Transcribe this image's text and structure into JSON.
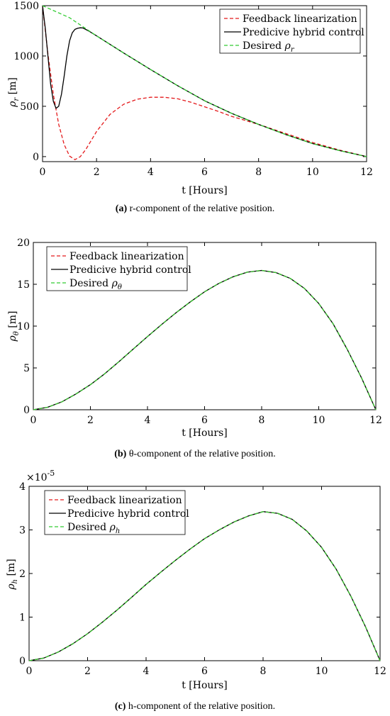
{
  "chart_data": [
    {
      "type": "line",
      "panel": "a",
      "caption_label": "(a)",
      "caption": "r-component of the relative position.",
      "xlabel": "t [Hours]",
      "ylabel_symbol": "ρ",
      "ylabel_sub": "r",
      "ylabel_unit": "[m]",
      "xlim": [
        0,
        12
      ],
      "ylim": [
        -50,
        1500
      ],
      "xticks": [
        0,
        2,
        4,
        6,
        8,
        10,
        12
      ],
      "yticks": [
        0,
        500,
        1000,
        1500
      ],
      "ytick_labels": [
        "0",
        "500",
        "1000",
        "1500"
      ],
      "exponent": "",
      "legend_position": "top-right",
      "grid": false,
      "series": [
        {
          "name": "Feedback linearization",
          "color": "#e41a1c",
          "dash": "dashed",
          "x": [
            0,
            0.2,
            0.4,
            0.6,
            0.8,
            1.0,
            1.2,
            1.4,
            1.6,
            1.8,
            2.0,
            2.5,
            3.0,
            3.5,
            4.0,
            4.5,
            5.0,
            5.5,
            6.0,
            6.5,
            7.0,
            7.5,
            8.0,
            9.0,
            10.0,
            11.0,
            12.0
          ],
          "y": [
            1500,
            1020,
            620,
            320,
            120,
            5,
            -30,
            0,
            70,
            160,
            250,
            420,
            520,
            570,
            590,
            590,
            575,
            540,
            495,
            450,
            400,
            360,
            320,
            230,
            140,
            65,
            0
          ]
        },
        {
          "name": "Predicive hybrid control",
          "color": "#000000",
          "dash": "solid",
          "x": [
            0,
            0.1,
            0.2,
            0.3,
            0.4,
            0.5,
            0.6,
            0.7,
            0.8,
            0.9,
            1.0,
            1.1,
            1.2,
            1.3,
            1.4,
            1.5,
            1.7,
            2.0,
            3.0,
            4.0,
            5.0,
            6.0,
            7.0,
            8.0,
            9.0,
            10.0,
            11.0,
            12.0
          ],
          "y": [
            1500,
            1280,
            1000,
            720,
            550,
            480,
            500,
            620,
            800,
            1000,
            1150,
            1230,
            1265,
            1275,
            1280,
            1278,
            1250,
            1200,
            1030,
            865,
            705,
            555,
            430,
            320,
            220,
            130,
            60,
            0
          ]
        },
        {
          "name": "Desired",
          "legend_symbol": "ρ",
          "legend_sub": "r",
          "color": "#33cc33",
          "dash": "dashed",
          "x": [
            0,
            1,
            2,
            3,
            4,
            5,
            6,
            7,
            8,
            9,
            10,
            11,
            12
          ],
          "y": [
            1500,
            1380,
            1200,
            1030,
            865,
            705,
            555,
            430,
            320,
            220,
            130,
            60,
            0
          ]
        }
      ]
    },
    {
      "type": "line",
      "panel": "b",
      "caption_label": "(b)",
      "caption": "θ-component of the relative position.",
      "xlabel": "t [Hours]",
      "ylabel_symbol": "ρ",
      "ylabel_sub": "θ",
      "ylabel_unit": "[m]",
      "xlim": [
        0,
        12
      ],
      "ylim": [
        0,
        20
      ],
      "xticks": [
        0,
        2,
        4,
        6,
        8,
        10,
        12
      ],
      "yticks": [
        0,
        5,
        10,
        15,
        20
      ],
      "ytick_labels": [
        "0",
        "5",
        "10",
        "15",
        "20"
      ],
      "exponent": "",
      "legend_position": "top-left",
      "grid": false,
      "series": [
        {
          "name": "Feedback linearization",
          "color": "#e41a1c",
          "dash": "dashed",
          "x": [
            0,
            0.5,
            1,
            1.5,
            2,
            2.5,
            3,
            3.5,
            4,
            4.5,
            5,
            5.5,
            6,
            6.5,
            7,
            7.5,
            8,
            8.5,
            9,
            9.5,
            10,
            10.5,
            11,
            11.5,
            12
          ],
          "y": [
            0,
            0.3,
            0.95,
            1.9,
            3.0,
            4.3,
            5.75,
            7.25,
            8.75,
            10.2,
            11.6,
            12.9,
            14.1,
            15.1,
            15.9,
            16.45,
            16.65,
            16.4,
            15.7,
            14.5,
            12.7,
            10.3,
            7.2,
            3.8,
            0
          ]
        },
        {
          "name": "Predicive hybrid control",
          "color": "#000000",
          "dash": "solid",
          "x": [
            0,
            0.5,
            1,
            1.5,
            2,
            2.5,
            3,
            3.5,
            4,
            4.5,
            5,
            5.5,
            6,
            6.5,
            7,
            7.5,
            8,
            8.5,
            9,
            9.5,
            10,
            10.5,
            11,
            11.5,
            12
          ],
          "y": [
            0,
            0.3,
            0.95,
            1.9,
            3.0,
            4.3,
            5.75,
            7.25,
            8.75,
            10.2,
            11.6,
            12.9,
            14.1,
            15.1,
            15.9,
            16.45,
            16.65,
            16.4,
            15.7,
            14.5,
            12.7,
            10.3,
            7.2,
            3.8,
            0
          ]
        },
        {
          "name": "Desired",
          "legend_symbol": "ρ",
          "legend_sub": "θ",
          "color": "#33cc33",
          "dash": "dashed",
          "x": [
            0,
            0.5,
            1,
            1.5,
            2,
            2.5,
            3,
            3.5,
            4,
            4.5,
            5,
            5.5,
            6,
            6.5,
            7,
            7.5,
            8,
            8.5,
            9,
            9.5,
            10,
            10.5,
            11,
            11.5,
            12
          ],
          "y": [
            0,
            0.3,
            0.95,
            1.9,
            3.0,
            4.3,
            5.75,
            7.25,
            8.75,
            10.2,
            11.6,
            12.9,
            14.1,
            15.1,
            15.9,
            16.45,
            16.65,
            16.4,
            15.7,
            14.5,
            12.7,
            10.3,
            7.2,
            3.8,
            0
          ]
        }
      ]
    },
    {
      "type": "line",
      "panel": "c",
      "caption_label": "(c)",
      "caption": "h-component of the relative position.",
      "xlabel": "t [Hours]",
      "ylabel_symbol": "ρ",
      "ylabel_sub": "h",
      "ylabel_unit": "[m]",
      "xlim": [
        0,
        12
      ],
      "ylim": [
        0,
        4
      ],
      "xticks": [
        0,
        2,
        4,
        6,
        8,
        10,
        12
      ],
      "yticks": [
        0,
        1,
        2,
        3,
        4
      ],
      "ytick_labels": [
        "0",
        "1",
        "2",
        "3",
        "4"
      ],
      "exponent_base": "×10",
      "exponent": "-5",
      "legend_position": "top-left",
      "grid": false,
      "series": [
        {
          "name": "Feedback linearization",
          "color": "#e41a1c",
          "dash": "dashed",
          "x": [
            0,
            0.5,
            1,
            1.5,
            2,
            2.5,
            3,
            3.5,
            4,
            4.5,
            5,
            5.5,
            6,
            6.5,
            7,
            7.5,
            8,
            8.5,
            9,
            9.5,
            10,
            10.5,
            11,
            11.5,
            12
          ],
          "y": [
            0,
            0.06,
            0.2,
            0.39,
            0.62,
            0.88,
            1.16,
            1.45,
            1.75,
            2.03,
            2.3,
            2.56,
            2.8,
            3.0,
            3.18,
            3.32,
            3.42,
            3.38,
            3.24,
            2.97,
            2.6,
            2.1,
            1.48,
            0.78,
            0
          ]
        },
        {
          "name": "Predicive hybrid control",
          "color": "#000000",
          "dash": "solid",
          "x": [
            0,
            0.5,
            1,
            1.5,
            2,
            2.5,
            3,
            3.5,
            4,
            4.5,
            5,
            5.5,
            6,
            6.5,
            7,
            7.5,
            8,
            8.5,
            9,
            9.5,
            10,
            10.5,
            11,
            11.5,
            12
          ],
          "y": [
            0,
            0.06,
            0.2,
            0.39,
            0.62,
            0.88,
            1.16,
            1.45,
            1.75,
            2.03,
            2.3,
            2.56,
            2.8,
            3.0,
            3.18,
            3.32,
            3.42,
            3.38,
            3.24,
            2.97,
            2.6,
            2.1,
            1.48,
            0.78,
            0
          ]
        },
        {
          "name": "Desired",
          "legend_symbol": "ρ",
          "legend_sub": "h",
          "color": "#33cc33",
          "dash": "dashed",
          "x": [
            0,
            0.5,
            1,
            1.5,
            2,
            2.5,
            3,
            3.5,
            4,
            4.5,
            5,
            5.5,
            6,
            6.5,
            7,
            7.5,
            8,
            8.5,
            9,
            9.5,
            10,
            10.5,
            11,
            11.5,
            12
          ],
          "y": [
            0,
            0.06,
            0.2,
            0.39,
            0.62,
            0.88,
            1.16,
            1.45,
            1.75,
            2.03,
            2.3,
            2.56,
            2.8,
            3.0,
            3.18,
            3.32,
            3.42,
            3.38,
            3.24,
            2.97,
            2.6,
            2.1,
            1.48,
            0.78,
            0
          ]
        }
      ]
    }
  ]
}
